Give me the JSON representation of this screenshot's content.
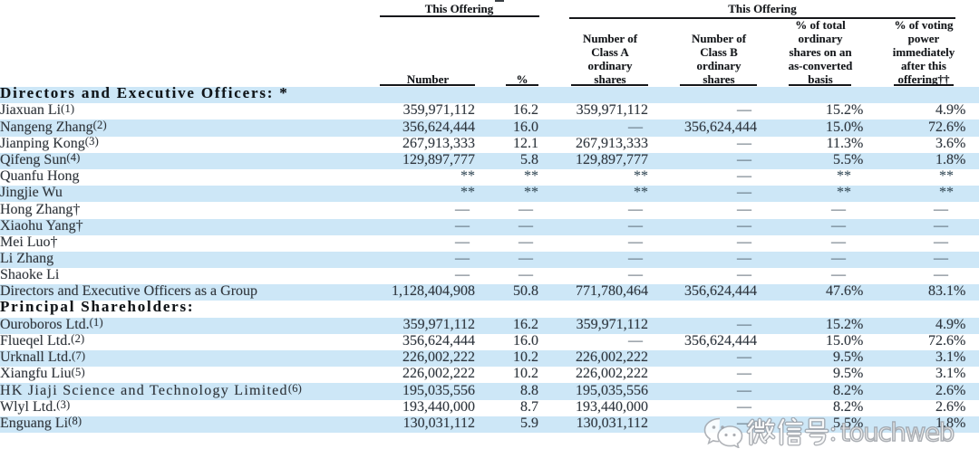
{
  "table": {
    "group_headers": [
      {
        "label": "This Offering"
      },
      {
        "label": "This Offering"
      }
    ],
    "columns": [
      {
        "label": "Number"
      },
      {
        "label": "%"
      },
      {
        "label": "Number of\nClass A\nordinary\nshares"
      },
      {
        "label": "Number of\nClass B\nordinary\nshares"
      },
      {
        "label": "% of total\nordinary\nshares on an\nas-converted\nbasis"
      },
      {
        "label": "% of voting\npower\nimmediately\nafter this\noffering††"
      }
    ],
    "rows": [
      {
        "type": "section",
        "name": "Directors and Executive Officers: *",
        "fn": "",
        "cells": [
          "",
          "",
          "",
          "",
          "",
          ""
        ]
      },
      {
        "type": "data",
        "name": "Jiaxuan Li",
        "fn": "(1)",
        "cells": [
          "359,971,112",
          "16.2",
          "359,971,112",
          "—",
          "15.2%",
          "4.9%"
        ]
      },
      {
        "type": "data",
        "name": "Nangeng Zhang",
        "fn": "(2)",
        "cells": [
          "356,624,444",
          "16.0",
          "—",
          "356,624,444",
          "15.0%",
          "72.6%"
        ]
      },
      {
        "type": "data",
        "name": "Jianping Kong",
        "fn": "(3)",
        "cells": [
          "267,913,333",
          "12.1",
          "267,913,333",
          "—",
          "11.3%",
          "3.6%"
        ]
      },
      {
        "type": "data",
        "name": "Qifeng Sun",
        "fn": "(4)",
        "cells": [
          "129,897,777",
          "5.8",
          "129,897,777",
          "—",
          "5.5%",
          "1.8%"
        ]
      },
      {
        "type": "data",
        "name": "Quanfu Hong",
        "fn": "",
        "cells": [
          "**",
          "**",
          "**",
          "—",
          "**",
          "**"
        ]
      },
      {
        "type": "data",
        "name": "Jingjie Wu",
        "fn": "",
        "cells": [
          "**",
          "**",
          "**",
          "—",
          "**",
          "**"
        ]
      },
      {
        "type": "data",
        "name": "Hong Zhang†",
        "fn": "",
        "cells": [
          "—",
          "—",
          "—",
          "—",
          "—",
          "—"
        ]
      },
      {
        "type": "data",
        "name": "Xiaohu Yang†",
        "fn": "",
        "cells": [
          "—",
          "—",
          "—",
          "—",
          "—",
          "—"
        ]
      },
      {
        "type": "data",
        "name": "Mei Luo†",
        "fn": "",
        "cells": [
          "—",
          "—",
          "—",
          "—",
          "—",
          "—"
        ]
      },
      {
        "type": "data",
        "name": "Li Zhang",
        "fn": "",
        "cells": [
          "—",
          "—",
          "—",
          "—",
          "—",
          "—"
        ]
      },
      {
        "type": "data",
        "name": "Shaoke Li",
        "fn": "",
        "cells": [
          "—",
          "—",
          "—",
          "—",
          "—",
          "—"
        ]
      },
      {
        "type": "data",
        "name": "Directors and Executive Officers as a Group",
        "fn": "",
        "cells": [
          "1,128,404,908",
          "50.8",
          "771,780,464",
          "356,624,444",
          "47.6%",
          "83.1%"
        ]
      },
      {
        "type": "section",
        "name": "Principal Shareholders:",
        "fn": "",
        "cells": [
          "",
          "",
          "",
          "",
          "",
          ""
        ]
      },
      {
        "type": "data",
        "name": "Ouroboros Ltd.",
        "fn": "(1)",
        "cells": [
          "359,971,112",
          "16.2",
          "359,971,112",
          "—",
          "15.2%",
          "4.9%"
        ]
      },
      {
        "type": "data",
        "name": "Flueqel Ltd.",
        "fn": "(2)",
        "cells": [
          "356,624,444",
          "16.0",
          "—",
          "356,624,444",
          "15.0%",
          "72.6%"
        ]
      },
      {
        "type": "data",
        "name": "Urknall Ltd.",
        "fn": "(7)",
        "cells": [
          "226,002,222",
          "10.2",
          "226,002,222",
          "—",
          "9.5%",
          "3.1%"
        ]
      },
      {
        "type": "data",
        "name": "Xiangfu Liu",
        "fn": "(5)",
        "cells": [
          "226,002,222",
          "10.2",
          "226,002,222",
          "—",
          "9.5%",
          "3.1%"
        ]
      },
      {
        "type": "data",
        "name": "HK Jiaji Science and Technology Limited",
        "fn": "(6)",
        "cells": [
          "195,035,556",
          "8.8",
          "195,035,556",
          "—",
          "8.2%",
          "2.6%"
        ]
      },
      {
        "type": "data",
        "name": "Wlyl Ltd.",
        "fn": "(3)",
        "cells": [
          "193,440,000",
          "8.7",
          "193,440,000",
          "—",
          "8.2%",
          "2.6%"
        ]
      },
      {
        "type": "data",
        "name": "Enguang Li",
        "fn": "(8)",
        "cells": [
          "130,031,112",
          "5.9",
          "130,031,112",
          "—",
          "5.5%",
          "1.8%"
        ]
      }
    ]
  },
  "watermark": {
    "icon": "wechat-icon",
    "cjk_label": "微信号:",
    "latin_label": "touchweb"
  },
  "colors": {
    "stripe_blue": "#cde7f7",
    "rule_black": "#16181b",
    "text_dark": "#30353b",
    "watermark_gray": "#969aa0"
  }
}
